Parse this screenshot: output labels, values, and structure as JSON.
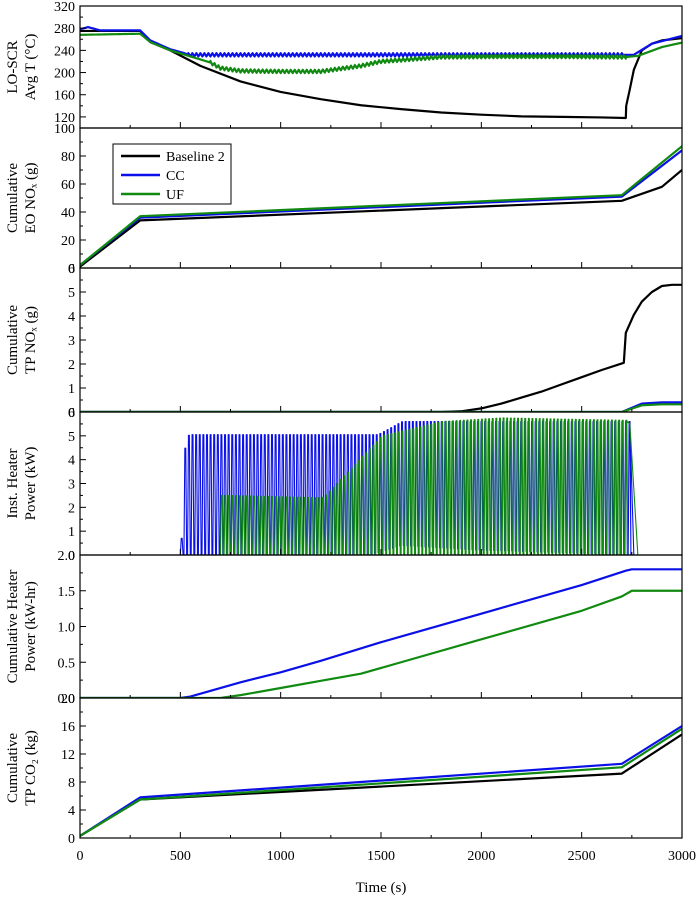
{
  "chart_data": {
    "type": "line",
    "xlabel": "Time (s)",
    "xlim": [
      0,
      3000
    ],
    "x_ticks": [
      "0",
      "500",
      "1000",
      "1500",
      "2000",
      "2500",
      "3000"
    ],
    "legend": {
      "placement": "top-left of panel 2",
      "entries": [
        "Baseline 2",
        "CC",
        "UF"
      ]
    },
    "colors": {
      "Baseline 2": "#000000",
      "CC": "#0a10e6",
      "UF": "#118a11"
    },
    "panels": [
      {
        "ylabel_lines": [
          "LO-SCR",
          "Avg T (°C)"
        ],
        "ylim": [
          100,
          320
        ],
        "y_ticks": [
          {
            "v": 120,
            "t": "120"
          },
          {
            "v": 160,
            "t": "160"
          },
          {
            "v": 200,
            "t": "200"
          },
          {
            "v": 240,
            "t": "240"
          },
          {
            "v": 280,
            "t": "280"
          },
          {
            "v": 320,
            "t": "320"
          }
        ],
        "series": [
          {
            "name": "Baseline 2",
            "x": [
              0,
              300,
              350,
              450,
              600,
              800,
              1000,
              1200,
              1400,
              1600,
              1800,
              2000,
              2200,
              2400,
              2600,
              2720,
              2722,
              2740,
              2760,
              2800,
              2850,
              2900,
              3000
            ],
            "y": [
              275,
              275,
              255,
              240,
              212,
              184,
              165,
              152,
              141,
              134,
              128,
              124,
              121,
              120,
              119,
              118,
              140,
              170,
              205,
              240,
              252,
              258,
              262
            ]
          },
          {
            "name": "CC",
            "x": [
              0,
              40,
              60,
              100,
              300,
              350,
              450,
              520,
              540,
              3000
            ],
            "y": [
              278,
              282,
              280,
              276,
              276,
              258,
              242,
              235,
              232,
              232
            ],
            "osc_start": 540,
            "osc_end": 2710,
            "osc_amp": 3,
            "tail": [
              [
                2710,
                232
              ],
              [
                2760,
                232
              ],
              [
                2850,
                252
              ],
              [
                3000,
                266
              ]
            ]
          },
          {
            "name": "UF",
            "x": [
              0,
              300,
              350,
              450,
              560,
              650,
              700,
              800,
              1000,
              1100,
              1200,
              1300,
              1400,
              1500,
              1800,
              2100,
              2400,
              2700
            ],
            "y": [
              268,
              270,
              255,
              240,
              228,
              218,
              208,
              203,
              202,
              202,
              202,
              207,
              212,
              220,
              228,
              229,
              229,
              228
            ],
            "osc_start": 650,
            "osc_end": 2720,
            "osc_amp": 3,
            "tail": [
              [
                2720,
                228
              ],
              [
                2780,
                230
              ],
              [
                2900,
                246
              ],
              [
                3000,
                254
              ]
            ]
          }
        ]
      },
      {
        "ylabel_lines": [
          "Cumulative",
          "EO NOₓ (g)"
        ],
        "ylim": [
          0,
          100
        ],
        "y_ticks": [
          {
            "v": 0,
            "t": "0"
          },
          {
            "v": 20,
            "t": "20"
          },
          {
            "v": 40,
            "t": "40"
          },
          {
            "v": 60,
            "t": "60"
          },
          {
            "v": 80,
            "t": "80"
          },
          {
            "v": 100,
            "t": "100"
          }
        ],
        "series": [
          {
            "name": "Baseline 2",
            "x": [
              0,
              300,
              2700,
              2900,
              3000
            ],
            "y": [
              1,
              34,
              48,
              58,
              70
            ]
          },
          {
            "name": "CC",
            "x": [
              0,
              300,
              2700,
              3000
            ],
            "y": [
              2,
              36,
              51,
              84
            ]
          },
          {
            "name": "UF",
            "x": [
              0,
              300,
              2700,
              3000
            ],
            "y": [
              2,
              37,
              52,
              87
            ]
          }
        ]
      },
      {
        "ylabel_lines": [
          "Cumulative",
          "TP NOₓ (g)"
        ],
        "ylim": [
          0,
          6
        ],
        "y_ticks": [
          {
            "v": 0,
            "t": "0"
          },
          {
            "v": 1,
            "t": "1"
          },
          {
            "v": 2,
            "t": "2"
          },
          {
            "v": 3,
            "t": "3"
          },
          {
            "v": 4,
            "t": "4"
          },
          {
            "v": 5,
            "t": "5"
          },
          {
            "v": 6,
            "t": "6"
          }
        ],
        "series": [
          {
            "name": "Baseline 2",
            "x": [
              0,
              1800,
              1900,
              2000,
              2100,
              2200,
              2300,
              2400,
              2500,
              2600,
              2710,
              2720,
              2760,
              2800,
              2850,
              2900,
              2950,
              3000
            ],
            "y": [
              0,
              0,
              0.03,
              0.15,
              0.35,
              0.6,
              0.85,
              1.15,
              1.45,
              1.75,
              2.05,
              3.3,
              4.05,
              4.6,
              5.0,
              5.25,
              5.3,
              5.3
            ]
          },
          {
            "name": "CC",
            "x": [
              0,
              2700,
              2800,
              2900,
              3000
            ],
            "y": [
              0,
              0,
              0.35,
              0.4,
              0.4
            ]
          },
          {
            "name": "UF",
            "x": [
              0,
              2700,
              2800,
              2900,
              3000
            ],
            "y": [
              0,
              0,
              0.28,
              0.32,
              0.32
            ]
          }
        ]
      },
      {
        "ylabel_lines": [
          "Inst. Heater",
          "Power (kW)"
        ],
        "ylim": [
          0,
          6
        ],
        "y_ticks": [
          {
            "v": 0,
            "t": "0"
          },
          {
            "v": 1,
            "t": "1"
          },
          {
            "v": 2,
            "t": "2"
          },
          {
            "v": 3,
            "t": "3"
          },
          {
            "v": 4,
            "t": "4"
          },
          {
            "v": 5,
            "t": "5"
          },
          {
            "v": 6,
            "t": "6"
          }
        ],
        "series": [
          {
            "name": "CC",
            "pulse": true,
            "start": 500,
            "end": 2740,
            "period": 18,
            "top_x": [
              500,
              520,
              540,
              1480,
              1600,
              2740
            ],
            "top_y": [
              0.7,
              4.9,
              5.05,
              5.05,
              5.6,
              5.6
            ],
            "base_x": [
              500,
              520,
              700,
              1200,
              1440,
              1600,
              2000,
              2400,
              2740
            ],
            "base_y": [
              0,
              0,
              0,
              0,
              0,
              0.4,
              0.2,
              0.1,
              0
            ],
            "drop": [
              [
                2740,
                5.6
              ],
              [
                2760,
                0
              ]
            ]
          },
          {
            "name": "UF",
            "pulse": true,
            "start": 700,
            "end": 2720,
            "period": 18,
            "top_x": [
              700,
              720,
              1200,
              1220,
              1500,
              1800,
              2100,
              2400,
              2720
            ],
            "top_y": [
              2.5,
              2.5,
              2.4,
              2.5,
              5.0,
              5.6,
              5.75,
              5.7,
              5.65
            ],
            "base_x": [
              700,
              1200,
              1500,
              2720
            ],
            "base_y": [
              0,
              0,
              0,
              0
            ],
            "drop": [
              [
                2720,
                5.65
              ],
              [
                2740,
                5.5
              ],
              [
                2780,
                0
              ]
            ]
          }
        ]
      },
      {
        "ylabel_lines": [
          "Cumulative Heater",
          "Power (kW-hr)"
        ],
        "ylim": [
          0,
          2
        ],
        "y_ticks": [
          {
            "v": 0,
            "t": "0.0"
          },
          {
            "v": 0.5,
            "t": "0.5"
          },
          {
            "v": 1.0,
            "t": "1.0"
          },
          {
            "v": 1.5,
            "t": "1.5"
          },
          {
            "v": 2.0,
            "t": "2.0"
          }
        ],
        "series": [
          {
            "name": "CC",
            "x": [
              0,
              500,
              550,
              800,
              1000,
              1200,
              1500,
              2000,
              2500,
              2720,
              2750,
              3000
            ],
            "y": [
              0,
              0,
              0.02,
              0.22,
              0.36,
              0.52,
              0.78,
              1.18,
              1.58,
              1.78,
              1.8,
              1.8
            ]
          },
          {
            "name": "UF",
            "x": [
              0,
              700,
              800,
              1000,
              1200,
              1400,
              1600,
              2000,
              2500,
              2700,
              2750,
              3000
            ],
            "y": [
              0,
              0,
              0.04,
              0.14,
              0.24,
              0.34,
              0.5,
              0.82,
              1.22,
              1.42,
              1.5,
              1.5
            ]
          }
        ]
      },
      {
        "ylabel_lines": [
          "Cumulative",
          "TP CO₂ (kg)"
        ],
        "ylim": [
          0,
          20
        ],
        "y_ticks": [
          {
            "v": 0,
            "t": "0"
          },
          {
            "v": 4,
            "t": "4"
          },
          {
            "v": 8,
            "t": "8"
          },
          {
            "v": 12,
            "t": "12"
          },
          {
            "v": 16,
            "t": "16"
          },
          {
            "v": 20,
            "t": "20"
          }
        ],
        "series": [
          {
            "name": "Baseline 2",
            "x": [
              0,
              300,
              2700,
              3000
            ],
            "y": [
              0.3,
              5.5,
              9.2,
              14.8
            ]
          },
          {
            "name": "CC",
            "x": [
              0,
              300,
              2700,
              3000
            ],
            "y": [
              0.3,
              5.8,
              10.6,
              16.0
            ]
          },
          {
            "name": "UF",
            "x": [
              0,
              300,
              2700,
              3000
            ],
            "y": [
              0.3,
              5.5,
              10.1,
              15.6
            ]
          }
        ]
      }
    ]
  }
}
